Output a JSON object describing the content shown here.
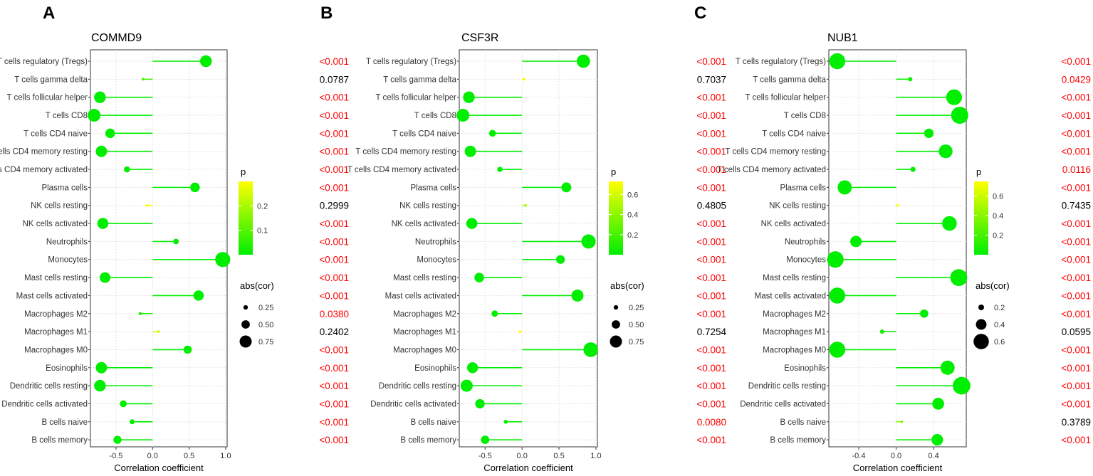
{
  "figure": {
    "categories": [
      "T cells regulatory (Tregs)",
      "T cells gamma delta",
      "T cells follicular helper",
      "T cells CD8",
      "T cells CD4 naive",
      "T cells CD4 memory resting",
      "T cells CD4 memory activated",
      "Plasma cells",
      "NK cells resting",
      "NK cells activated",
      "Neutrophils",
      "Monocytes",
      "Mast cells resting",
      "Mast cells activated",
      "Macrophages M2",
      "Macrophages M1",
      "Macrophages M0",
      "Eosinophils",
      "Dendritic cells resting",
      "Dendritic cells activated",
      "B cells naive",
      "B cells memory"
    ],
    "xlabel": "Correlation coefficient",
    "colors": {
      "low_p": "#00ee00",
      "high_p": "#ffff00",
      "sig_text": "#ff0000",
      "nonsig_text": "#000000"
    }
  },
  "chart_data": [
    {
      "type": "lollipop",
      "panel_letter": "A",
      "title": "COMMD9",
      "xlim": [
        -0.85,
        1.02
      ],
      "xticks": [
        -0.5,
        0.0,
        0.5,
        1.0
      ],
      "xtick_labels": [
        "-0.5",
        "0.0",
        "0.5",
        "1.0"
      ],
      "values": [
        0.73,
        -0.13,
        -0.72,
        -0.8,
        -0.58,
        -0.7,
        -0.35,
        0.58,
        -0.08,
        -0.68,
        0.32,
        0.96,
        -0.65,
        0.63,
        -0.17,
        0.08,
        0.48,
        -0.7,
        -0.72,
        -0.4,
        -0.28,
        -0.48
      ],
      "p_values": [
        0.001,
        0.0787,
        0.001,
        0.001,
        0.001,
        0.001,
        0.001,
        0.001,
        0.2999,
        0.001,
        0.001,
        0.001,
        0.001,
        0.001,
        0.038,
        0.2402,
        0.001,
        0.001,
        0.001,
        0.001,
        0.001,
        0.001
      ],
      "p_labels": [
        "<0.001",
        "0.0787",
        "<0.001",
        "<0.001",
        "<0.001",
        "<0.001",
        "<0.001",
        "<0.001",
        "0.2999",
        "<0.001",
        "<0.001",
        "<0.001",
        "<0.001",
        "<0.001",
        "0.0380",
        "0.2402",
        "<0.001",
        "<0.001",
        "<0.001",
        "<0.001",
        "<0.001",
        "<0.001"
      ],
      "legend_p": {
        "title": "p",
        "range": [
          0.0,
          0.3
        ],
        "ticks": [
          0.1,
          0.2
        ],
        "tick_labels": [
          "0.1",
          "0.2"
        ]
      },
      "legend_size": {
        "title": "abs(cor)",
        "values": [
          0.25,
          0.5,
          0.75
        ],
        "labels": [
          "0.25",
          "0.50",
          "0.75"
        ]
      }
    },
    {
      "type": "lollipop",
      "panel_letter": "B",
      "title": "CSF3R",
      "xlim": [
        -0.85,
        1.02
      ],
      "xticks": [
        -0.5,
        0.0,
        0.5,
        1.0
      ],
      "xtick_labels": [
        "-0.5",
        "0.0",
        "0.5",
        "1.0"
      ],
      "values": [
        0.83,
        0.03,
        -0.72,
        -0.8,
        -0.4,
        -0.7,
        -0.3,
        0.6,
        0.05,
        -0.68,
        0.9,
        0.52,
        -0.58,
        0.75,
        -0.37,
        -0.03,
        0.93,
        -0.67,
        -0.75,
        -0.57,
        -0.22,
        -0.5
      ],
      "p_values": [
        0.001,
        0.7037,
        0.001,
        0.001,
        0.001,
        0.001,
        0.001,
        0.001,
        0.4805,
        0.001,
        0.001,
        0.001,
        0.001,
        0.001,
        0.001,
        0.7254,
        0.001,
        0.001,
        0.001,
        0.001,
        0.008,
        0.001
      ],
      "p_labels": [
        "<0.001",
        "0.7037",
        "<0.001",
        "<0.001",
        "<0.001",
        "<0.001",
        "<0.001",
        "<0.001",
        "0.4805",
        "<0.001",
        "<0.001",
        "<0.001",
        "<0.001",
        "<0.001",
        "<0.001",
        "0.7254",
        "<0.001",
        "<0.001",
        "<0.001",
        "<0.001",
        "0.0080",
        "<0.001"
      ],
      "legend_p": {
        "title": "p",
        "range": [
          0.0,
          0.73
        ],
        "ticks": [
          0.2,
          0.4,
          0.6
        ],
        "tick_labels": [
          "0.2",
          "0.4",
          "0.6"
        ]
      },
      "legend_size": {
        "title": "abs(cor)",
        "values": [
          0.25,
          0.5,
          0.75
        ],
        "labels": [
          "0.25",
          "0.50",
          "0.75"
        ]
      }
    },
    {
      "type": "lollipop",
      "panel_letter": "C",
      "title": "NUB1",
      "xlim": [
        -0.72,
        0.75
      ],
      "xticks": [
        -0.4,
        0.0,
        0.4
      ],
      "xtick_labels": [
        "-0.4",
        "0.0",
        "0.4"
      ],
      "values": [
        -0.63,
        0.15,
        0.62,
        0.68,
        0.35,
        0.53,
        0.18,
        -0.55,
        0.02,
        0.57,
        -0.43,
        -0.65,
        0.67,
        -0.63,
        0.3,
        -0.15,
        -0.63,
        0.55,
        0.7,
        0.45,
        0.06,
        0.44
      ],
      "p_values": [
        0.001,
        0.0429,
        0.001,
        0.001,
        0.001,
        0.001,
        0.0116,
        0.001,
        0.7435,
        0.001,
        0.001,
        0.001,
        0.001,
        0.001,
        0.001,
        0.0595,
        0.001,
        0.001,
        0.001,
        0.001,
        0.3789,
        0.001
      ],
      "p_labels": [
        "<0.001",
        "0.0429",
        "<0.001",
        "<0.001",
        "<0.001",
        "<0.001",
        "0.0116",
        "<0.001",
        "0.7435",
        "<0.001",
        "<0.001",
        "<0.001",
        "<0.001",
        "<0.001",
        "<0.001",
        "0.0595",
        "<0.001",
        "<0.001",
        "<0.001",
        "<0.001",
        "0.3789",
        "<0.001"
      ],
      "legend_p": {
        "title": "p",
        "range": [
          0.0,
          0.75
        ],
        "ticks": [
          0.2,
          0.4,
          0.6
        ],
        "tick_labels": [
          "0.2",
          "0.4",
          "0.6"
        ]
      },
      "legend_size": {
        "title": "abs(cor)",
        "values": [
          0.2,
          0.4,
          0.6
        ],
        "labels": [
          "0.2",
          "0.4",
          "0.6"
        ]
      }
    }
  ]
}
